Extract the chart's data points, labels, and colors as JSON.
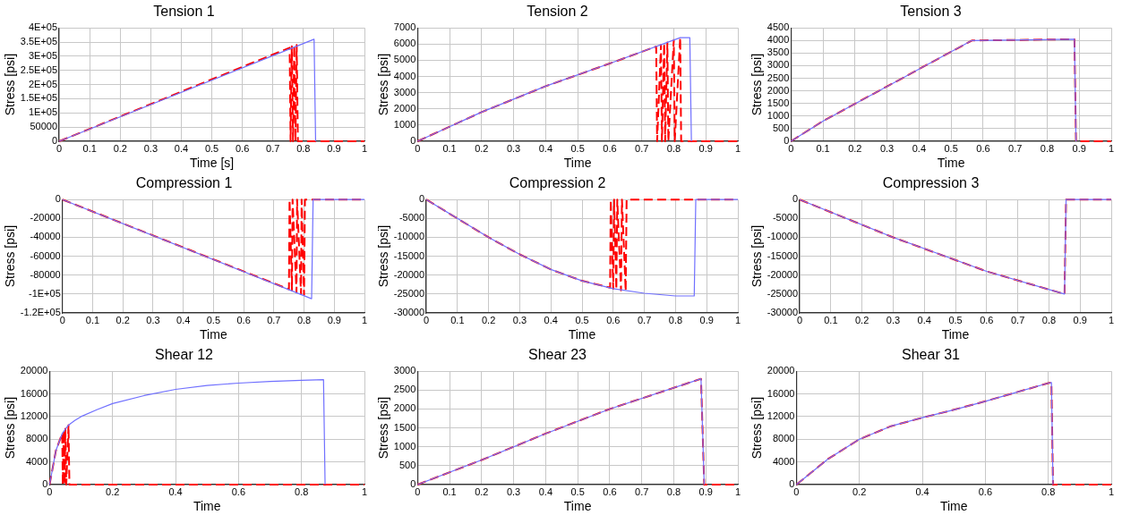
{
  "chart_data": [
    {
      "type": "line",
      "title": "Tension 1",
      "xlabel": "Time [s]",
      "ylabel": "Stress [psi]",
      "xlim": [
        0,
        1
      ],
      "xticks": [
        0,
        0.1,
        0.2,
        0.3,
        0.4,
        0.5,
        0.6,
        0.7,
        0.8,
        0.9,
        1
      ],
      "ylim": [
        0,
        400000
      ],
      "yticks": [
        0,
        50000,
        {
          "value": 100000,
          "label": "1E+05"
        },
        {
          "value": 150000,
          "label": "1.5E+05"
        },
        {
          "value": 200000,
          "label": "2E+05"
        },
        {
          "value": 250000,
          "label": "2.5E+05"
        },
        {
          "value": 300000,
          "label": "3E+05"
        },
        {
          "value": 350000,
          "label": "3.5E+05"
        },
        {
          "value": 400000,
          "label": "4E+05"
        }
      ],
      "grid": true,
      "marker": "none",
      "series": [
        {
          "color": "#7070ff",
          "line_style": "solid",
          "x": [
            0,
            0.835,
            0.84
          ],
          "values": [
            0,
            360000,
            0
          ]
        },
        {
          "color": "#ff0000",
          "line_style": "dashed",
          "x": [
            0,
            0.755,
            0.758,
            0.762,
            0.766,
            0.77,
            0.774,
            0.778,
            0.782,
            1
          ],
          "values": [
            0,
            330000,
            0,
            335000,
            0,
            338000,
            0,
            340000,
            0,
            0
          ]
        }
      ]
    },
    {
      "type": "line",
      "title": "Tension 2",
      "xlabel": "Time",
      "ylabel": "Stress [psi]",
      "xlim": [
        0,
        1
      ],
      "xticks": [
        0,
        0.1,
        0.2,
        0.3,
        0.4,
        0.5,
        0.6,
        0.7,
        0.8,
        0.9,
        1
      ],
      "ylim": [
        0,
        7000
      ],
      "yticks": [
        0,
        1000,
        2000,
        3000,
        4000,
        5000,
        6000,
        7000
      ],
      "grid": true,
      "marker": "none",
      "series": [
        {
          "color": "#7070ff",
          "line_style": "solid",
          "x": [
            0,
            0.2,
            0.4,
            0.6,
            0.82,
            0.85,
            0.855
          ],
          "values": [
            0,
            1800,
            3400,
            4800,
            6400,
            6400,
            0
          ]
        },
        {
          "color": "#ff0000",
          "line_style": "dashed",
          "x": [
            0,
            0.2,
            0.4,
            0.6,
            0.745,
            0.748,
            0.76,
            0.763,
            0.77,
            0.773,
            0.78,
            0.783,
            0.8,
            0.803,
            0.82,
            0.823,
            1
          ],
          "values": [
            0,
            1800,
            3400,
            4800,
            5850,
            0,
            5950,
            0,
            6050,
            0,
            6100,
            0,
            6250,
            0,
            6400,
            0,
            0
          ]
        }
      ]
    },
    {
      "type": "line",
      "title": "Tension 3",
      "xlabel": "Time",
      "ylabel": "Stress [psi]",
      "xlim": [
        0,
        1
      ],
      "xticks": [
        0,
        0.1,
        0.2,
        0.3,
        0.4,
        0.5,
        0.6,
        0.7,
        0.8,
        0.9,
        1
      ],
      "ylim": [
        0,
        4500
      ],
      "yticks": [
        0,
        500,
        1000,
        1500,
        2000,
        2500,
        3000,
        3500,
        4000,
        4500
      ],
      "grid": true,
      "marker": "none",
      "series": [
        {
          "color": "#7070ff",
          "line_style": "solid",
          "x": [
            0,
            0.1,
            0.565,
            0.885,
            0.89
          ],
          "values": [
            0,
            800,
            4000,
            4050,
            0
          ]
        },
        {
          "color": "#ff0000",
          "line_style": "dashed",
          "x": [
            0,
            0.1,
            0.565,
            0.885,
            0.89,
            1
          ],
          "values": [
            0,
            800,
            4000,
            4050,
            0,
            0
          ]
        }
      ]
    },
    {
      "type": "line",
      "title": "Compression 1",
      "xlabel": "Time",
      "ylabel": "Stress [psi]",
      "xlim": [
        0,
        1
      ],
      "xticks": [
        0,
        0.1,
        0.2,
        0.3,
        0.4,
        0.5,
        0.6,
        0.7,
        0.8,
        0.9,
        1
      ],
      "ylim": [
        -120000,
        0
      ],
      "yticks": [
        {
          "value": -120000,
          "label": "-1.2E+05"
        },
        {
          "value": -100000,
          "label": "-1E+05"
        },
        -80000,
        -60000,
        -40000,
        -20000,
        0
      ],
      "grid": true,
      "marker": "none",
      "series": [
        {
          "color": "#7070ff",
          "line_style": "solid",
          "x": [
            0,
            0.825,
            0.83,
            1
          ],
          "values": [
            0,
            -105000,
            0,
            0
          ]
        },
        {
          "color": "#ff0000",
          "line_style": "dashed",
          "x": [
            0,
            0.75,
            0.752,
            0.76,
            0.762,
            0.775,
            0.777,
            0.79,
            0.792,
            0.8,
            0.803,
            1
          ],
          "values": [
            0,
            -95000,
            0,
            -96000,
            0,
            -98000,
            0,
            -100000,
            0,
            -101000,
            0,
            0
          ]
        }
      ]
    },
    {
      "type": "line",
      "title": "Compression 2",
      "xlabel": "Time",
      "ylabel": "Stress [psi]",
      "xlim": [
        0,
        1
      ],
      "xticks": [
        0,
        0.1,
        0.2,
        0.3,
        0.4,
        0.5,
        0.6,
        0.7,
        0.8,
        0.9,
        1
      ],
      "ylim": [
        -30000,
        0
      ],
      "yticks": [
        -30000,
        -25000,
        -20000,
        -15000,
        -10000,
        -5000,
        0
      ],
      "grid": true,
      "marker": "none",
      "series": [
        {
          "color": "#7070ff",
          "line_style": "solid",
          "x": [
            0,
            0.1,
            0.2,
            0.3,
            0.4,
            0.5,
            0.6,
            0.7,
            0.8,
            0.86,
            0.865,
            1
          ],
          "values": [
            0,
            -5000,
            -10000,
            -14500,
            -18500,
            -21500,
            -23600,
            -24800,
            -25500,
            -25500,
            0,
            0
          ]
        },
        {
          "color": "#ff0000",
          "line_style": "dashed",
          "x": [
            0,
            0.1,
            0.2,
            0.3,
            0.4,
            0.5,
            0.59,
            0.592,
            0.6,
            0.603,
            0.61,
            0.613,
            0.625,
            0.628,
            0.64,
            0.643,
            1
          ],
          "values": [
            0,
            -5000,
            -10000,
            -14500,
            -18500,
            -21500,
            -23300,
            0,
            -23600,
            0,
            -23800,
            0,
            -24000,
            0,
            -24200,
            0,
            0
          ]
        }
      ]
    },
    {
      "type": "line",
      "title": "Compression 3",
      "xlabel": "Time",
      "ylabel": "Stress [psi]",
      "xlim": [
        0,
        1
      ],
      "xticks": [
        0,
        0.1,
        0.2,
        0.3,
        0.4,
        0.5,
        0.6,
        0.7,
        0.8,
        0.9,
        1
      ],
      "ylim": [
        -30000,
        0
      ],
      "yticks": [
        -30000,
        -25000,
        -20000,
        -15000,
        -10000,
        -5000,
        0
      ],
      "grid": true,
      "marker": "none",
      "series": [
        {
          "color": "#7070ff",
          "line_style": "solid",
          "x": [
            0,
            0.3,
            0.6,
            0.85,
            0.855,
            1
          ],
          "values": [
            0,
            -10000,
            -19000,
            -25000,
            0,
            0
          ]
        },
        {
          "color": "#ff0000",
          "line_style": "dashed",
          "x": [
            0,
            0.3,
            0.6,
            0.85,
            0.855,
            1
          ],
          "values": [
            0,
            -10000,
            -19000,
            -25000,
            0,
            0
          ]
        }
      ]
    },
    {
      "type": "line",
      "title": "Shear 12",
      "xlabel": "Time",
      "ylabel": "Stress [psi]",
      "xlim": [
        0,
        1
      ],
      "xticks": [
        0,
        0.2,
        0.4,
        0.6,
        0.8,
        1
      ],
      "ylim": [
        0,
        20000
      ],
      "yticks": [
        0,
        4000,
        8000,
        12000,
        16000,
        20000
      ],
      "grid": true,
      "marker": "none",
      "series": [
        {
          "color": "#7070ff",
          "line_style": "solid",
          "x": [
            0,
            0.02,
            0.04,
            0.06,
            0.08,
            0.1,
            0.15,
            0.2,
            0.3,
            0.4,
            0.5,
            0.6,
            0.7,
            0.8,
            0.87,
            0.875
          ],
          "values": [
            0,
            6000,
            9000,
            10500,
            11300,
            12000,
            13200,
            14300,
            15700,
            16800,
            17500,
            17900,
            18200,
            18400,
            18500,
            0
          ]
        },
        {
          "color": "#ff0000",
          "line_style": "dashed",
          "x": [
            0,
            0.02,
            0.04,
            0.042,
            0.045,
            0.048,
            0.05,
            0.053,
            0.06,
            0.063,
            1
          ],
          "values": [
            0,
            6000,
            9000,
            0,
            9500,
            0,
            10000,
            0,
            10500,
            0,
            0
          ]
        }
      ]
    },
    {
      "type": "line",
      "title": "Shear 23",
      "xlabel": "Time",
      "ylabel": "Stress [psi]",
      "xlim": [
        0,
        1
      ],
      "xticks": [
        0,
        0.1,
        0.2,
        0.3,
        0.4,
        0.5,
        0.6,
        0.7,
        0.8,
        0.9,
        1
      ],
      "ylim": [
        0,
        3000
      ],
      "yticks": [
        0,
        500,
        1000,
        1500,
        2000,
        2500,
        3000
      ],
      "grid": true,
      "marker": "none",
      "series": [
        {
          "color": "#7070ff",
          "line_style": "solid",
          "x": [
            0,
            0.2,
            0.4,
            0.6,
            0.885,
            0.895
          ],
          "values": [
            0,
            650,
            1350,
            2000,
            2800,
            0
          ]
        },
        {
          "color": "#ff0000",
          "line_style": "dashed",
          "x": [
            0,
            0.2,
            0.4,
            0.6,
            0.885,
            0.895,
            1
          ],
          "values": [
            0,
            650,
            1350,
            2000,
            2800,
            0,
            0
          ]
        }
      ]
    },
    {
      "type": "line",
      "title": "Shear 31",
      "xlabel": "Time",
      "ylabel": "Stress [psi]",
      "xlim": [
        0,
        1
      ],
      "xticks": [
        0,
        0.2,
        0.4,
        0.6,
        0.8,
        1
      ],
      "ylim": [
        0,
        20000
      ],
      "yticks": [
        0,
        4000,
        8000,
        12000,
        16000,
        20000
      ],
      "grid": true,
      "marker": "none",
      "series": [
        {
          "color": "#7070ff",
          "line_style": "solid",
          "x": [
            0,
            0.1,
            0.2,
            0.3,
            0.4,
            0.5,
            0.6,
            0.7,
            0.8,
            0.81,
            0.815
          ],
          "values": [
            0,
            4500,
            8000,
            10300,
            11800,
            13200,
            14700,
            16300,
            17900,
            18000,
            0
          ]
        },
        {
          "color": "#ff0000",
          "line_style": "dashed",
          "x": [
            0,
            0.1,
            0.2,
            0.3,
            0.4,
            0.5,
            0.6,
            0.7,
            0.8,
            0.81,
            0.815,
            1
          ],
          "values": [
            0,
            4500,
            8000,
            10300,
            11800,
            13200,
            14700,
            16300,
            17900,
            18000,
            0,
            0
          ]
        }
      ]
    }
  ]
}
